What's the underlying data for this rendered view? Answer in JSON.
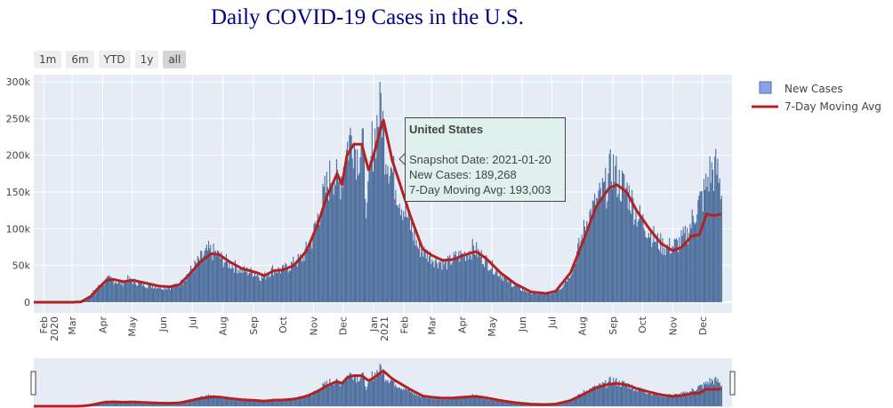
{
  "title": "Daily COVID-19 Cases in the U.S.",
  "range_buttons": [
    {
      "label": "1m"
    },
    {
      "label": "6m"
    },
    {
      "label": "YTD"
    },
    {
      "label": "1y"
    },
    {
      "label": "all",
      "active": true
    }
  ],
  "legend": {
    "bars_label": "New Cases",
    "line_label": "7-Day Moving Avg"
  },
  "tooltip": {
    "title": "United States",
    "date": "Snapshot Date: 2021-01-20",
    "new_cases": "New Cases: 189,268",
    "avg": "7-Day Moving Avg: 193,003"
  },
  "colors": {
    "bars": "#4e6f9d",
    "line": "#b22222",
    "plot_bg": "#e5ecf6",
    "legend_swatch": "#8ca0e8"
  },
  "chart_data": {
    "type": "bar",
    "title": "Daily COVID-19 Cases in the U.S.",
    "ylim": [
      0,
      300000
    ],
    "y_ticks": [
      {
        "value": 0,
        "label": "0"
      },
      {
        "value": 50000,
        "label": "50k"
      },
      {
        "value": 100000,
        "label": "100k"
      },
      {
        "value": 150000,
        "label": "150k"
      },
      {
        "value": 200000,
        "label": "200k"
      },
      {
        "value": 250000,
        "label": "250k"
      },
      {
        "value": 300000,
        "label": "300k"
      }
    ],
    "x_range": [
      "2020-01-22",
      "2021-12-31"
    ],
    "x_ticks": [
      {
        "date": "2020-02-01",
        "label": "Feb",
        "sub": "2020"
      },
      {
        "date": "2020-03-01",
        "label": "Mar"
      },
      {
        "date": "2020-04-01",
        "label": "Apr"
      },
      {
        "date": "2020-05-01",
        "label": "May"
      },
      {
        "date": "2020-06-01",
        "label": "Jun"
      },
      {
        "date": "2020-07-01",
        "label": "Jul"
      },
      {
        "date": "2020-08-01",
        "label": "Aug"
      },
      {
        "date": "2020-09-01",
        "label": "Sep"
      },
      {
        "date": "2020-10-01",
        "label": "Oct"
      },
      {
        "date": "2020-11-01",
        "label": "Nov"
      },
      {
        "date": "2020-12-01",
        "label": "Dec"
      },
      {
        "date": "2021-01-01",
        "label": "Jan",
        "sub": "2021"
      },
      {
        "date": "2021-02-01",
        "label": "Feb"
      },
      {
        "date": "2021-03-01",
        "label": "Mar"
      },
      {
        "date": "2021-04-01",
        "label": "Apr"
      },
      {
        "date": "2021-05-01",
        "label": "May"
      },
      {
        "date": "2021-06-01",
        "label": "Jun"
      },
      {
        "date": "2021-07-01",
        "label": "Jul"
      },
      {
        "date": "2021-08-01",
        "label": "Aug"
      },
      {
        "date": "2021-09-01",
        "label": "Sep"
      },
      {
        "date": "2021-10-01",
        "label": "Oct"
      },
      {
        "date": "2021-11-01",
        "label": "Nov"
      },
      {
        "date": "2021-12-01",
        "label": "Dec"
      }
    ],
    "grid": true,
    "legend_position": "top-right",
    "series": [
      {
        "name": "New Cases",
        "type": "bar",
        "points": [
          [
            "2020-01-22",
            0
          ],
          [
            "2020-02-15",
            0
          ],
          [
            "2020-03-01",
            100
          ],
          [
            "2020-03-10",
            800
          ],
          [
            "2020-03-15",
            3000
          ],
          [
            "2020-03-20",
            12000
          ],
          [
            "2020-03-25",
            20000
          ],
          [
            "2020-04-01",
            28000
          ],
          [
            "2020-04-05",
            33000
          ],
          [
            "2020-04-10",
            34000
          ],
          [
            "2020-04-15",
            30000
          ],
          [
            "2020-04-20",
            28000
          ],
          [
            "2020-04-25",
            34000
          ],
          [
            "2020-05-01",
            31000
          ],
          [
            "2020-05-10",
            27000
          ],
          [
            "2020-05-20",
            24000
          ],
          [
            "2020-06-01",
            22000
          ],
          [
            "2020-06-10",
            22000
          ],
          [
            "2020-06-18",
            27000
          ],
          [
            "2020-06-25",
            40000
          ],
          [
            "2020-07-01",
            50000
          ],
          [
            "2020-07-10",
            66000
          ],
          [
            "2020-07-17",
            76000
          ],
          [
            "2020-07-24",
            72000
          ],
          [
            "2020-08-01",
            62000
          ],
          [
            "2020-08-10",
            55000
          ],
          [
            "2020-08-20",
            47000
          ],
          [
            "2020-09-01",
            44000
          ],
          [
            "2020-09-10",
            36000
          ],
          [
            "2020-09-20",
            48000
          ],
          [
            "2020-10-01",
            47000
          ],
          [
            "2020-10-10",
            56000
          ],
          [
            "2020-10-20",
            65000
          ],
          [
            "2020-10-30",
            92000
          ],
          [
            "2020-11-05",
            125000
          ],
          [
            "2020-11-12",
            160000
          ],
          [
            "2020-11-20",
            195000
          ],
          [
            "2020-11-26",
            170000
          ],
          [
            "2020-12-01",
            200000
          ],
          [
            "2020-12-05",
            230000
          ],
          [
            "2020-12-10",
            250000
          ],
          [
            "2020-12-15",
            215000
          ],
          [
            "2020-12-20",
            240000
          ],
          [
            "2020-12-25",
            130000
          ],
          [
            "2020-12-30",
            230000
          ],
          [
            "2021-01-02",
            245000
          ],
          [
            "2021-01-08",
            297000
          ],
          [
            "2021-01-12",
            230000
          ],
          [
            "2021-01-20",
            189268
          ],
          [
            "2021-01-28",
            150000
          ],
          [
            "2021-02-05",
            120000
          ],
          [
            "2021-02-15",
            80000
          ],
          [
            "2021-02-25",
            70000
          ],
          [
            "2021-03-05",
            62000
          ],
          [
            "2021-03-15",
            56000
          ],
          [
            "2021-03-25",
            66000
          ],
          [
            "2021-04-05",
            72000
          ],
          [
            "2021-04-12",
            80000
          ],
          [
            "2021-04-20",
            68000
          ],
          [
            "2021-05-01",
            52000
          ],
          [
            "2021-05-10",
            40000
          ],
          [
            "2021-05-20",
            28000
          ],
          [
            "2021-06-01",
            18000
          ],
          [
            "2021-06-10",
            14000
          ],
          [
            "2021-06-20",
            12000
          ],
          [
            "2021-07-01",
            14000
          ],
          [
            "2021-07-10",
            22000
          ],
          [
            "2021-07-20",
            45000
          ],
          [
            "2021-07-30",
            90000
          ],
          [
            "2021-08-05",
            120000
          ],
          [
            "2021-08-15",
            145000
          ],
          [
            "2021-08-25",
            170000
          ],
          [
            "2021-08-31",
            200000
          ],
          [
            "2021-09-07",
            175000
          ],
          [
            "2021-09-15",
            165000
          ],
          [
            "2021-09-25",
            130000
          ],
          [
            "2021-10-05",
            110000
          ],
          [
            "2021-10-15",
            90000
          ],
          [
            "2021-10-25",
            80000
          ],
          [
            "2021-11-05",
            85000
          ],
          [
            "2021-11-15",
            100000
          ],
          [
            "2021-11-25",
            140000
          ],
          [
            "2021-12-01",
            155000
          ],
          [
            "2021-12-08",
            190000
          ],
          [
            "2021-12-15",
            195000
          ],
          [
            "2021-12-20",
            160000
          ]
        ]
      },
      {
        "name": "7-Day Moving Avg",
        "type": "line",
        "points": [
          [
            "2020-01-22",
            0
          ],
          [
            "2020-03-01",
            0
          ],
          [
            "2020-03-10",
            500
          ],
          [
            "2020-03-20",
            8000
          ],
          [
            "2020-03-28",
            20000
          ],
          [
            "2020-04-05",
            30000
          ],
          [
            "2020-04-12",
            31000
          ],
          [
            "2020-04-22",
            28000
          ],
          [
            "2020-05-01",
            30000
          ],
          [
            "2020-05-15",
            26000
          ],
          [
            "2020-05-28",
            22000
          ],
          [
            "2020-06-08",
            21000
          ],
          [
            "2020-06-18",
            24000
          ],
          [
            "2020-06-28",
            38000
          ],
          [
            "2020-07-10",
            56000
          ],
          [
            "2020-07-20",
            66000
          ],
          [
            "2020-07-28",
            65000
          ],
          [
            "2020-08-08",
            55000
          ],
          [
            "2020-08-20",
            46000
          ],
          [
            "2020-09-05",
            40000
          ],
          [
            "2020-09-12",
            36000
          ],
          [
            "2020-09-22",
            43000
          ],
          [
            "2020-10-01",
            44000
          ],
          [
            "2020-10-12",
            50000
          ],
          [
            "2020-10-25",
            70000
          ],
          [
            "2020-11-05",
            105000
          ],
          [
            "2020-11-15",
            145000
          ],
          [
            "2020-11-25",
            175000
          ],
          [
            "2020-11-30",
            160000
          ],
          [
            "2020-12-05",
            200000
          ],
          [
            "2020-12-12",
            215000
          ],
          [
            "2020-12-20",
            215000
          ],
          [
            "2020-12-27",
            180000
          ],
          [
            "2020-12-31",
            195000
          ],
          [
            "2021-01-06",
            225000
          ],
          [
            "2021-01-11",
            248000
          ],
          [
            "2021-01-20",
            193003
          ],
          [
            "2021-01-28",
            160000
          ],
          [
            "2021-02-08",
            115000
          ],
          [
            "2021-02-20",
            72000
          ],
          [
            "2021-03-01",
            64000
          ],
          [
            "2021-03-12",
            57000
          ],
          [
            "2021-03-22",
            58000
          ],
          [
            "2021-04-05",
            65000
          ],
          [
            "2021-04-15",
            69000
          ],
          [
            "2021-04-25",
            60000
          ],
          [
            "2021-05-10",
            40000
          ],
          [
            "2021-05-25",
            25000
          ],
          [
            "2021-06-10",
            14000
          ],
          [
            "2021-06-25",
            12000
          ],
          [
            "2021-07-05",
            15000
          ],
          [
            "2021-07-20",
            40000
          ],
          [
            "2021-08-01",
            80000
          ],
          [
            "2021-08-15",
            130000
          ],
          [
            "2021-08-28",
            155000
          ],
          [
            "2021-09-05",
            160000
          ],
          [
            "2021-09-15",
            150000
          ],
          [
            "2021-09-25",
            125000
          ],
          [
            "2021-10-08",
            100000
          ],
          [
            "2021-10-20",
            80000
          ],
          [
            "2021-11-01",
            70000
          ],
          [
            "2021-11-10",
            75000
          ],
          [
            "2021-11-20",
            90000
          ],
          [
            "2021-11-28",
            92000
          ],
          [
            "2021-12-05",
            120000
          ],
          [
            "2021-12-12",
            118000
          ],
          [
            "2021-12-20",
            120000
          ]
        ]
      }
    ]
  }
}
